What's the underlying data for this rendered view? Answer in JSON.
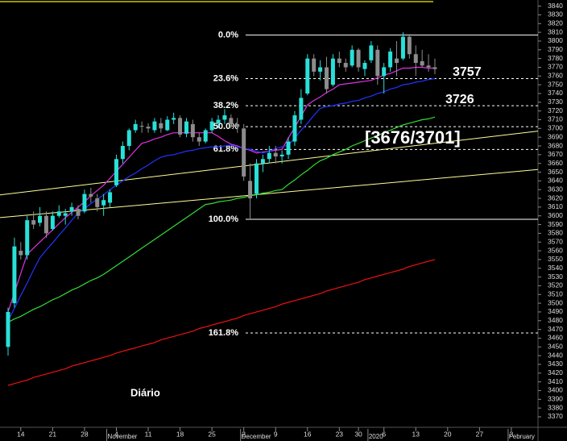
{
  "chart_data": {
    "type": "candlestick",
    "ylim": [
      3358,
      3847
    ],
    "yticks": [
      3370,
      3380,
      3390,
      3400,
      3410,
      3420,
      3430,
      3440,
      3450,
      3460,
      3470,
      3480,
      3490,
      3500,
      3510,
      3520,
      3530,
      3540,
      3550,
      3560,
      3570,
      3580,
      3590,
      3600,
      3610,
      3620,
      3630,
      3640,
      3650,
      3660,
      3670,
      3680,
      3690,
      3700,
      3710,
      3720,
      3730,
      3740,
      3750,
      3760,
      3770,
      3780,
      3790,
      3800,
      3810,
      3820,
      3830,
      3840
    ],
    "categories": [
      null,
      null,
      "14",
      null,
      null,
      null,
      null,
      "21",
      null,
      null,
      null,
      null,
      "28",
      null,
      null,
      null,
      null,
      "4",
      null,
      null,
      null,
      null,
      "11",
      null,
      null,
      null,
      null,
      "18",
      null,
      null,
      null,
      null,
      "25",
      null,
      null,
      null,
      null,
      "2",
      null,
      null,
      null,
      null,
      "9",
      null,
      null,
      null,
      null,
      "16",
      null,
      null,
      null,
      null,
      "23",
      null,
      null,
      "30",
      null,
      null,
      null,
      "6",
      null,
      null,
      null,
      null,
      "13",
      null,
      null,
      null,
      null,
      "20",
      null,
      null,
      null,
      null,
      "27",
      null,
      null,
      null,
      null,
      "3",
      null,
      null,
      null,
      null
    ],
    "months": [
      {
        "label": "November",
        "index": 16
      },
      {
        "label": "December",
        "index": 37
      },
      {
        "label": "2020",
        "index": 57
      },
      {
        "label": "February",
        "index": 79
      }
    ],
    "up_color": "#29e0d8",
    "down_color": "#8c8c8c",
    "ohlc": [
      [
        3450,
        3495,
        3440,
        3490
      ],
      [
        3500,
        3575,
        3495,
        3565
      ],
      [
        3560,
        3570,
        3550,
        3555
      ],
      [
        3555,
        3600,
        3550,
        3595
      ],
      [
        3595,
        3605,
        3585,
        3590
      ],
      [
        3592,
        3610,
        3588,
        3600
      ],
      [
        3600,
        3605,
        3575,
        3580
      ],
      [
        3585,
        3605,
        3583,
        3600
      ],
      [
        3600,
        3612,
        3598,
        3605
      ],
      [
        3600,
        3608,
        3590,
        3603
      ],
      [
        3605,
        3615,
        3600,
        3610
      ],
      [
        3608,
        3612,
        3596,
        3600
      ],
      [
        3605,
        3630,
        3603,
        3625
      ],
      [
        3625,
        3632,
        3615,
        3622
      ],
      [
        3620,
        3625,
        3605,
        3610
      ],
      [
        3612,
        3625,
        3600,
        3618
      ],
      [
        3615,
        3630,
        3610,
        3627
      ],
      [
        3635,
        3670,
        3633,
        3665
      ],
      [
        3665,
        3685,
        3660,
        3680
      ],
      [
        3680,
        3700,
        3675,
        3698
      ],
      [
        3698,
        3710,
        3695,
        3705
      ],
      [
        3703,
        3708,
        3695,
        3702
      ],
      [
        3702,
        3706,
        3695,
        3700
      ],
      [
        3698,
        3712,
        3695,
        3708
      ],
      [
        3706,
        3712,
        3695,
        3700
      ],
      [
        3698,
        3714,
        3697,
        3710
      ],
      [
        3710,
        3718,
        3705,
        3712
      ],
      [
        3712,
        3715,
        3690,
        3693
      ],
      [
        3694,
        3712,
        3690,
        3708
      ],
      [
        3705,
        3710,
        3685,
        3690
      ],
      [
        3690,
        3695,
        3680,
        3685
      ],
      [
        3685,
        3700,
        3683,
        3698
      ],
      [
        3698,
        3712,
        3695,
        3708
      ],
      [
        3706,
        3715,
        3700,
        3710
      ],
      [
        3710,
        3722,
        3705,
        3715
      ],
      [
        3712,
        3716,
        3700,
        3705
      ],
      [
        3705,
        3712,
        3695,
        3702
      ],
      [
        3700,
        3705,
        3640,
        3645
      ],
      [
        3640,
        3660,
        3596,
        3620
      ],
      [
        3625,
        3665,
        3620,
        3660
      ],
      [
        3660,
        3670,
        3650,
        3665
      ],
      [
        3665,
        3680,
        3660,
        3672
      ],
      [
        3672,
        3680,
        3660,
        3668
      ],
      [
        3668,
        3675,
        3660,
        3670
      ],
      [
        3670,
        3690,
        3665,
        3685
      ],
      [
        3685,
        3720,
        3680,
        3715
      ],
      [
        3710,
        3745,
        3705,
        3735
      ],
      [
        3740,
        3785,
        3738,
        3780
      ],
      [
        3780,
        3785,
        3760,
        3765
      ],
      [
        3765,
        3778,
        3755,
        3770
      ],
      [
        3770,
        3782,
        3740,
        3745
      ],
      [
        3750,
        3785,
        3748,
        3780
      ],
      [
        3780,
        3788,
        3770,
        3775
      ],
      [
        3775,
        3780,
        3765,
        3770
      ],
      [
        3772,
        3795,
        3770,
        3790
      ],
      [
        3790,
        3792,
        3765,
        3770
      ],
      [
        3768,
        3778,
        3760,
        3775
      ],
      [
        3778,
        3800,
        3775,
        3795
      ],
      [
        3790,
        3795,
        3750,
        3760
      ],
      [
        3760,
        3775,
        3740,
        3770
      ],
      [
        3770,
        3792,
        3765,
        3788
      ],
      [
        3780,
        3800,
        3760,
        3775
      ],
      [
        3780,
        3810,
        3778,
        3805
      ],
      [
        3805,
        3808,
        3780,
        3785
      ],
      [
        3785,
        3795,
        3760,
        3775
      ],
      [
        3777,
        3790,
        3770,
        3772
      ],
      [
        3772,
        3785,
        3765,
        3770
      ],
      [
        3770,
        3780,
        3762,
        3768
      ],
      null,
      null,
      null,
      null,
      null,
      null,
      null,
      null,
      null,
      null,
      null,
      null,
      null,
      null,
      null,
      null
    ],
    "series": [
      {
        "color": "#e030e0",
        "values": [
          3490,
          3512,
          3534,
          3556,
          3563,
          3570,
          3577,
          3584,
          3591,
          3598,
          3604,
          3610,
          3616,
          3623,
          3629,
          3635,
          3643,
          3651,
          3659,
          3667,
          3675,
          3683,
          3685,
          3688,
          3690,
          3693,
          3695,
          3695,
          3695,
          3695,
          3695,
          3695,
          3695,
          3691,
          3686,
          3682,
          3680,
          3677,
          3675,
          3672,
          3673,
          3674,
          3675,
          3676,
          3689,
          3701,
          3714,
          3727,
          3732,
          3736,
          3741,
          3745,
          3750,
          3751,
          3752,
          3753,
          3754,
          3755,
          3758,
          3761,
          3763,
          3766,
          3769,
          3769,
          3770,
          3770,
          3769,
          3769,
          null,
          null,
          null,
          null,
          null,
          null,
          null,
          null,
          null,
          null,
          null,
          null,
          null,
          null,
          null,
          null
        ]
      },
      {
        "color": "#2233ff",
        "values": [
          3480,
          3494,
          3509,
          3523,
          3538,
          3552,
          3561,
          3569,
          3578,
          3586,
          3595,
          3603,
          3608,
          3614,
          3619,
          3624,
          3630,
          3635,
          3640,
          3645,
          3649,
          3654,
          3658,
          3663,
          3667,
          3669,
          3670,
          3672,
          3674,
          3675,
          3677,
          3678,
          3679,
          3679,
          3680,
          3681,
          3679,
          3677,
          3676,
          3674,
          3672,
          3674,
          3677,
          3679,
          3681,
          3689,
          3698,
          3706,
          3715,
          3723,
          3725,
          3726,
          3728,
          3729,
          3731,
          3732,
          3735,
          3737,
          3740,
          3742,
          3745,
          3747,
          3750,
          3751,
          3753,
          3754,
          3756,
          3757,
          null,
          null,
          null,
          null,
          null,
          null,
          null,
          null,
          null,
          null,
          null,
          null,
          null,
          null,
          null,
          null
        ]
      },
      {
        "color": "#33dd33",
        "values": [
          3478,
          3482,
          3485,
          3489,
          3493,
          3496,
          3500,
          3504,
          3507,
          3511,
          3515,
          3518,
          3522,
          3526,
          3529,
          3533,
          3538,
          3543,
          3548,
          3553,
          3558,
          3563,
          3568,
          3573,
          3578,
          3583,
          3588,
          3593,
          3598,
          3603,
          3608,
          3613,
          3614,
          3616,
          3617,
          3618,
          3620,
          3621,
          3623,
          3624,
          3626,
          3627,
          3629,
          3630,
          3636,
          3641,
          3647,
          3652,
          3658,
          3663,
          3666,
          3670,
          3673,
          3676,
          3680,
          3683,
          3686,
          3689,
          3692,
          3695,
          3698,
          3701,
          3704,
          3706,
          3708,
          3710,
          3711,
          3713,
          null,
          null,
          null,
          null,
          null,
          null,
          null,
          null,
          null,
          null,
          null,
          null,
          null,
          null,
          null,
          null
        ]
      },
      {
        "color": "#ee1111",
        "values": [
          3406,
          3408,
          3410,
          3412,
          3415,
          3417,
          3419,
          3421,
          3423,
          3425,
          3428,
          3430,
          3432,
          3434,
          3436,
          3438,
          3440,
          3443,
          3445,
          3447,
          3449,
          3451,
          3453,
          3455,
          3458,
          3460,
          3462,
          3464,
          3466,
          3468,
          3471,
          3473,
          3475,
          3477,
          3479,
          3481,
          3483,
          3486,
          3488,
          3490,
          3492,
          3494,
          3496,
          3499,
          3501,
          3503,
          3505,
          3507,
          3509,
          3511,
          3514,
          3516,
          3518,
          3520,
          3522,
          3524,
          3527,
          3529,
          3531,
          3533,
          3535,
          3537,
          3539,
          3542,
          3544,
          3546,
          3548,
          3550,
          null,
          null,
          null,
          null,
          null,
          null,
          null,
          null,
          null,
          null,
          null,
          null,
          null,
          null,
          null,
          null
        ]
      }
    ],
    "trendlines": [
      {
        "start": 3624,
        "end": 3697,
        "color": "#ffff99"
      },
      {
        "start": 3598,
        "end": 3653,
        "color": "#ffff99"
      }
    ],
    "fib_levels": [
      {
        "label": "0.0%",
        "value": 3807,
        "dashed": false
      },
      {
        "label": "23.6%",
        "value": 3757,
        "dashed": true
      },
      {
        "label": "38.2%",
        "value": 3726,
        "dashed": true
      },
      {
        "label": "50.0%",
        "value": 3702,
        "dashed": true
      },
      {
        "label": "61.8%",
        "value": 3676,
        "dashed": true
      },
      {
        "label": "100.0%",
        "value": 3596,
        "dashed": false
      },
      {
        "label": "161.8%",
        "value": 3466,
        "dashed": true
      }
    ],
    "annotations": [
      "3757",
      "3726",
      "[3676/3701]",
      "Diário"
    ]
  }
}
